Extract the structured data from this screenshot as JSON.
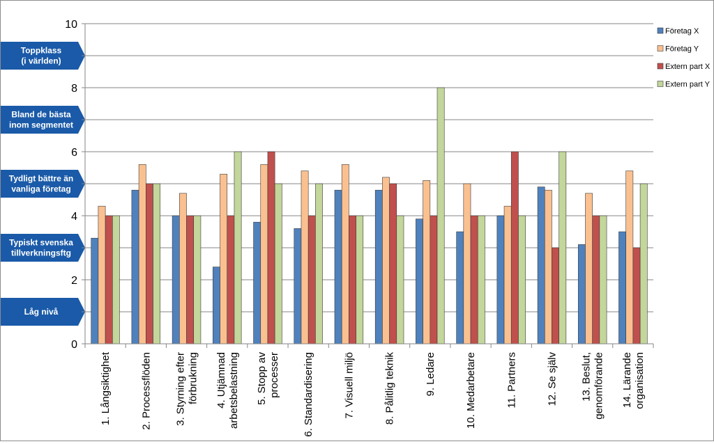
{
  "chart_data": {
    "type": "bar",
    "title": "",
    "xlabel": "",
    "ylabel": "",
    "ylim": [
      0,
      10
    ],
    "yticks": [
      0,
      2,
      4,
      6,
      8,
      10
    ],
    "grid": true,
    "legend_position": "top-right",
    "categories": [
      "1. Långsiktighet",
      "2. Processflöden",
      "3. Styrning efter förbrukning",
      "4. Utjämnad arbetsbelastning",
      "5. Stopp av processer",
      "6. Standardisering",
      "7. Visuell miljö",
      "8. Pålitlig teknik",
      "9. Ledare",
      "10. Medarbetare",
      "11. Partners",
      "12. Se själv",
      "13. Beslut, genomförande",
      "14. Lärande organisation"
    ],
    "category_lines": [
      [
        "1. Långsiktighet"
      ],
      [
        "2. Processflöden"
      ],
      [
        "3. Styrning efter",
        "förbrukning"
      ],
      [
        "4. Utjämnad",
        "arbetsbelastning"
      ],
      [
        "5. Stopp av",
        "processer"
      ],
      [
        "6. Standardisering"
      ],
      [
        "7. Visuell miljö"
      ],
      [
        "8. Pålitlig teknik"
      ],
      [
        "9. Ledare"
      ],
      [
        "10. Medarbetare"
      ],
      [
        "11. Partners"
      ],
      [
        "12. Se själv"
      ],
      [
        "13. Beslut,",
        "genomförande"
      ],
      [
        "14. Lärande",
        "organisation"
      ]
    ],
    "series": [
      {
        "name": "Företag X",
        "color": "#4f81bd",
        "values": [
          3.3,
          4.8,
          4.0,
          2.4,
          3.8,
          3.6,
          4.8,
          4.8,
          3.9,
          3.5,
          4.0,
          4.9,
          3.1,
          3.5
        ]
      },
      {
        "name": "Företag Y",
        "color": "#fac090",
        "values": [
          4.3,
          5.6,
          4.7,
          5.3,
          5.6,
          5.4,
          5.6,
          5.2,
          5.1,
          5.0,
          4.3,
          4.8,
          4.7,
          5.4
        ]
      },
      {
        "name": "Extern part X",
        "color": "#c0504d",
        "values": [
          4.0,
          5.0,
          4.0,
          4.0,
          6.0,
          4.0,
          4.0,
          5.0,
          4.0,
          4.0,
          6.0,
          3.0,
          4.0,
          3.0
        ]
      },
      {
        "name": "Extern part Y",
        "color": "#c3d69b",
        "values": [
          4.0,
          5.0,
          4.0,
          6.0,
          5.0,
          5.0,
          4.0,
          4.0,
          8.0,
          4.0,
          4.0,
          6.0,
          4.0,
          5.0
        ]
      }
    ],
    "level_labels": [
      {
        "lines": [
          "Toppklass",
          "(i världen)"
        ],
        "center_value": 9
      },
      {
        "lines": [
          "Bland  de bästa",
          "inom segmentet"
        ],
        "center_value": 7
      },
      {
        "lines": [
          "Tydligt bättre än",
          "vanliga företag"
        ],
        "center_value": 5
      },
      {
        "lines": [
          "Typiskt svenska",
          "tillverkningsftg"
        ],
        "center_value": 3
      },
      {
        "lines": [
          "Låg nivå"
        ],
        "center_value": 1
      }
    ],
    "colors": {
      "level_arrow": "#1a5aa8",
      "grid": "#868686",
      "axis": "#868686"
    }
  }
}
